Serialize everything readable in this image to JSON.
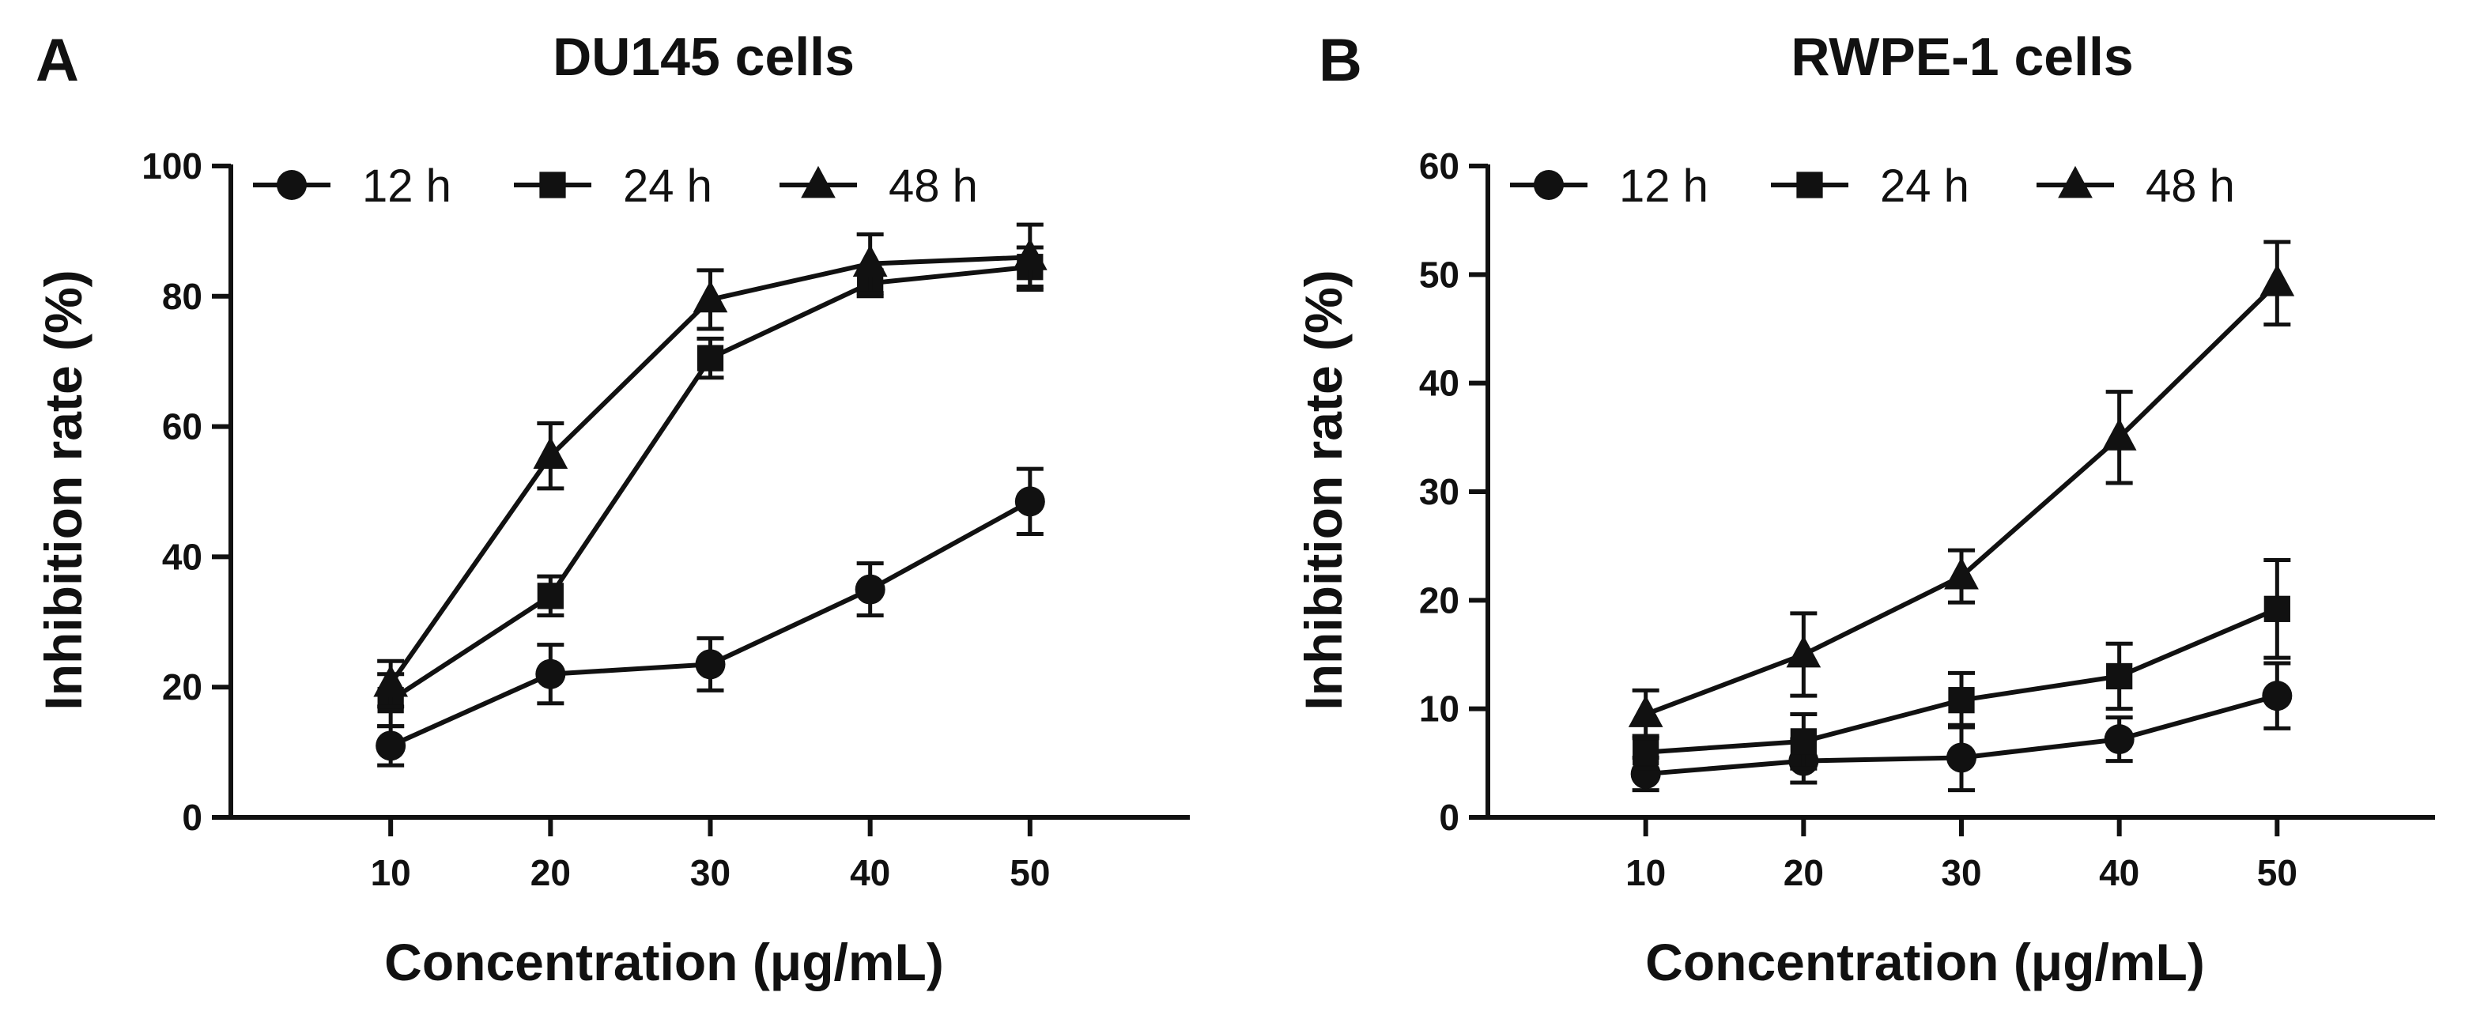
{
  "chart_data": [
    {
      "panel": "A",
      "type": "line",
      "title": "DU145 cells",
      "xlabel": "Concentration (μg/mL)",
      "ylabel": "Inhibition rate (%)",
      "x": [
        10,
        20,
        30,
        40,
        50
      ],
      "x_ticks": [
        "10",
        "20",
        "30",
        "40",
        "50"
      ],
      "xlim": [
        0,
        60
      ],
      "ylim": [
        0,
        100
      ],
      "y_ticks": [
        "0",
        "20",
        "40",
        "60",
        "80",
        "100"
      ],
      "grid": false,
      "legend": "top-left",
      "series": [
        {
          "name": "12 h",
          "marker": "circle",
          "values": [
            11,
            22,
            23.5,
            35,
            48.5
          ],
          "errors": [
            3,
            4.5,
            4,
            4,
            5
          ]
        },
        {
          "name": "24 h",
          "marker": "square",
          "values": [
            18,
            34,
            70.5,
            82,
            84.5
          ],
          "errors": [
            4,
            3,
            3,
            2,
            3
          ]
        },
        {
          "name": "48 h",
          "marker": "triangle",
          "values": [
            20.5,
            55.5,
            79.5,
            85,
            86
          ],
          "errors": [
            3.5,
            5,
            4.5,
            4.5,
            5
          ]
        }
      ]
    },
    {
      "panel": "B",
      "type": "line",
      "title": "RWPE-1 cells",
      "xlabel": "Concentration (μg/mL)",
      "ylabel": "Inhibition rate (%)",
      "x": [
        10,
        20,
        30,
        40,
        50
      ],
      "x_ticks": [
        "10",
        "20",
        "30",
        "40",
        "50"
      ],
      "xlim": [
        0,
        60
      ],
      "ylim": [
        0,
        60
      ],
      "y_ticks": [
        "0",
        "10",
        "20",
        "30",
        "40",
        "50",
        "60"
      ],
      "grid": false,
      "legend": "top-left",
      "series": [
        {
          "name": "12 h",
          "marker": "circle",
          "values": [
            4,
            5.2,
            5.5,
            7.2,
            11.2
          ],
          "errors": [
            1.5,
            2,
            3,
            2,
            3
          ]
        },
        {
          "name": "24 h",
          "marker": "square",
          "values": [
            6,
            7,
            10.8,
            13,
            19.2
          ],
          "errors": [
            1.5,
            2.5,
            2.5,
            3,
            4.5
          ]
        },
        {
          "name": "48 h",
          "marker": "triangle",
          "values": [
            9.5,
            15,
            22.2,
            35,
            49.2
          ],
          "errors": [
            2.2,
            3.8,
            2.4,
            4.2,
            3.8
          ]
        }
      ]
    }
  ],
  "colors": {
    "ink": "#111111",
    "background": "#ffffff"
  }
}
